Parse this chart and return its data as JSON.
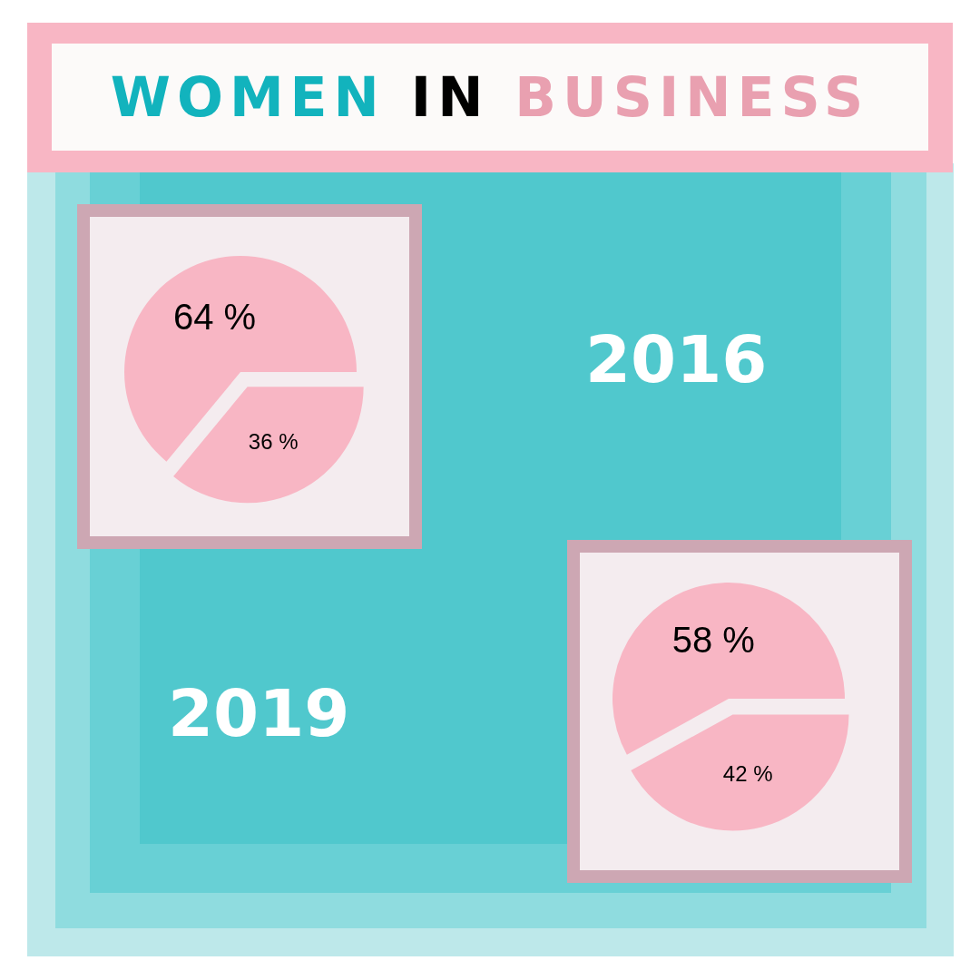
{
  "chart_data": [
    {
      "type": "pie",
      "title": "2016",
      "annotations": [
        "WOMEN IN BUSINESS"
      ],
      "categories": [
        null,
        null
      ],
      "values": [
        64,
        36
      ],
      "colors": [
        "#f8b6c4",
        "#f8b6c4"
      ],
      "value_labels": [
        "64 %",
        "36 %"
      ]
    },
    {
      "type": "pie",
      "title": "2019",
      "categories": [
        null,
        null
      ],
      "values": [
        58,
        42
      ],
      "colors": [
        "#f8b6c4",
        "#f8b6c4"
      ],
      "value_labels": [
        "58 %",
        "42 %"
      ]
    }
  ]
}
